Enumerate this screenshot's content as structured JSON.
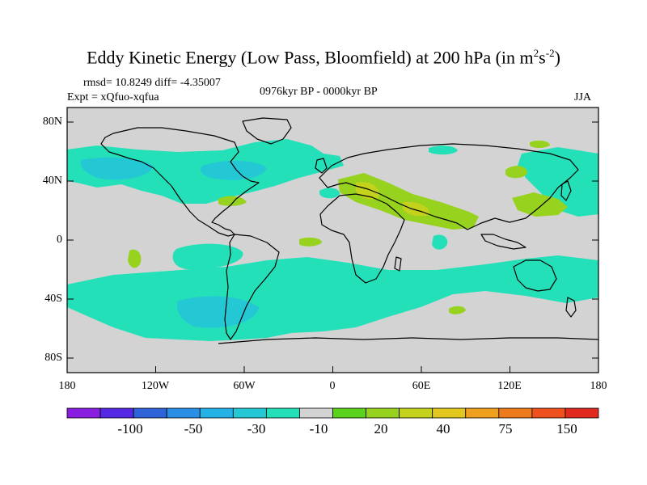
{
  "title": {
    "main": "Eddy Kinetic Energy (Low Pass, Bloomfield) at 200 hPa (in m",
    "sup1": "2",
    "mid": "s",
    "sup2": "-2",
    "end": ")"
  },
  "stats": "rmsd= 10.8249 diff= -4.35007",
  "expt": "Expt = xQfuo-xqfua",
  "period": "0976kyr BP - 0000kyr BP",
  "season": "JJA",
  "map": {
    "y_labels": [
      "80N",
      "40N",
      "0",
      "40S",
      "80S"
    ],
    "x_labels": [
      "180",
      "120W",
      "60W",
      "0",
      "60E",
      "120E",
      "180"
    ],
    "background_color": "#d3d3d3"
  },
  "colorbar": {
    "colors": [
      "#8a1ee0",
      "#5528e6",
      "#2e64d8",
      "#2a8ee6",
      "#24b2e6",
      "#24c8d4",
      "#24e0b8",
      "#d3d3d3",
      "#5ad21e",
      "#96d21e",
      "#c4d21e",
      "#e2c81e",
      "#eea01e",
      "#ee7a1e",
      "#ee501e",
      "#e02a1e"
    ],
    "tick_labels": [
      "-100",
      "-50",
      "-30",
      "-10",
      "20",
      "40",
      "75",
      "150"
    ]
  }
}
